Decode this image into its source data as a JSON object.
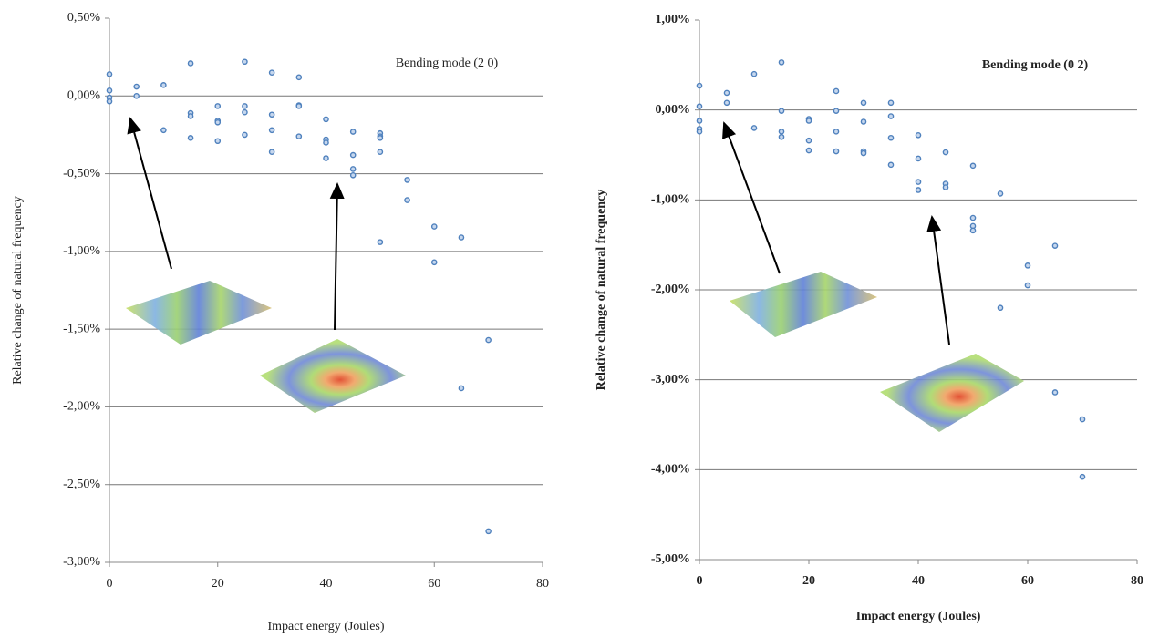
{
  "chart_data": [
    {
      "type": "scatter",
      "annotation": "Bending mode (2 0)",
      "xlabel": "Impact energy (Joules)",
      "ylabel": "Relative change of natural frequency",
      "xlim": [
        0,
        80
      ],
      "xticks": [
        0,
        20,
        40,
        60,
        80
      ],
      "ylim": [
        -3,
        0.5
      ],
      "yticks": [
        {
          "value": 0.5,
          "label": "0,50%"
        },
        {
          "value": 0,
          "label": "0,00%"
        },
        {
          "value": -0.5,
          "label": "-0,50%"
        },
        {
          "value": -1,
          "label": "-1,00%"
        },
        {
          "value": -1.5,
          "label": "-1,50%"
        },
        {
          "value": -2,
          "label": "-2,00%"
        },
        {
          "value": -2.5,
          "label": "-2,50%"
        },
        {
          "value": -3,
          "label": "-3,00%"
        }
      ],
      "grid": true,
      "color": "#4f81bd",
      "x": [
        0,
        0,
        0,
        0,
        5,
        5,
        10,
        10,
        15,
        15,
        15,
        15,
        20,
        20,
        20,
        20,
        25,
        25,
        25,
        25,
        30,
        30,
        30,
        30,
        35,
        35,
        35,
        35,
        40,
        40,
        40,
        40,
        45,
        45,
        45,
        45,
        50,
        50,
        50,
        50,
        50,
        55,
        55,
        60,
        60,
        65,
        65,
        70,
        70
      ],
      "values": [
        0.14,
        0.035,
        -0.01,
        -0.035,
        0.06,
        0.0,
        0.07,
        -0.22,
        0.21,
        -0.11,
        -0.13,
        -0.27,
        -0.065,
        -0.16,
        -0.17,
        -0.29,
        0.22,
        -0.065,
        -0.105,
        -0.25,
        0.15,
        -0.12,
        -0.22,
        -0.36,
        0.12,
        -0.06,
        -0.065,
        -0.26,
        -0.15,
        -0.28,
        -0.3,
        -0.4,
        -0.23,
        -0.38,
        -0.47,
        -0.51,
        -0.24,
        -0.26,
        -0.27,
        -0.36,
        -0.94,
        -0.54,
        -0.67,
        -0.84,
        -1.07,
        -0.91,
        -1.88,
        -1.57,
        -2.8
      ]
    },
    {
      "type": "scatter",
      "annotation": "Bending mode (0 2)",
      "xlabel": "Impact energy (Joules)",
      "ylabel": "Relative change of natural frequency",
      "xlim": [
        0,
        80
      ],
      "xticks": [
        0,
        20,
        40,
        60,
        80
      ],
      "ylim": [
        -5,
        1
      ],
      "yticks": [
        {
          "value": 1,
          "label": "1,00%"
        },
        {
          "value": 0,
          "label": "0,00%"
        },
        {
          "value": -1,
          "label": "-1,00%"
        },
        {
          "value": -2,
          "label": "-2,00%"
        },
        {
          "value": -3,
          "label": "-3,00%"
        },
        {
          "value": -4,
          "label": "-4,00%"
        },
        {
          "value": -5,
          "label": "-5,00%"
        }
      ],
      "grid": true,
      "color": "#4f81bd",
      "x": [
        0,
        0,
        0,
        0,
        0,
        5,
        5,
        10,
        10,
        15,
        15,
        15,
        15,
        20,
        20,
        20,
        20,
        25,
        25,
        25,
        25,
        30,
        30,
        30,
        30,
        35,
        35,
        35,
        35,
        40,
        40,
        40,
        40,
        45,
        45,
        45,
        50,
        50,
        50,
        50,
        55,
        55,
        60,
        60,
        65,
        65,
        70,
        70
      ],
      "values": [
        0.27,
        0.04,
        -0.12,
        -0.21,
        -0.24,
        0.19,
        0.08,
        0.4,
        -0.2,
        0.53,
        -0.01,
        -0.24,
        -0.3,
        -0.1,
        -0.12,
        -0.34,
        -0.45,
        0.21,
        -0.01,
        -0.24,
        -0.46,
        0.08,
        -0.13,
        -0.46,
        -0.48,
        0.08,
        -0.07,
        -0.31,
        -0.61,
        -0.28,
        -0.54,
        -0.8,
        -0.89,
        -0.47,
        -0.82,
        -0.86,
        -0.62,
        -1.2,
        -1.29,
        -1.34,
        -0.93,
        -2.2,
        -1.73,
        -1.95,
        -1.51,
        -3.14,
        -3.44,
        -4.08
      ]
    }
  ]
}
